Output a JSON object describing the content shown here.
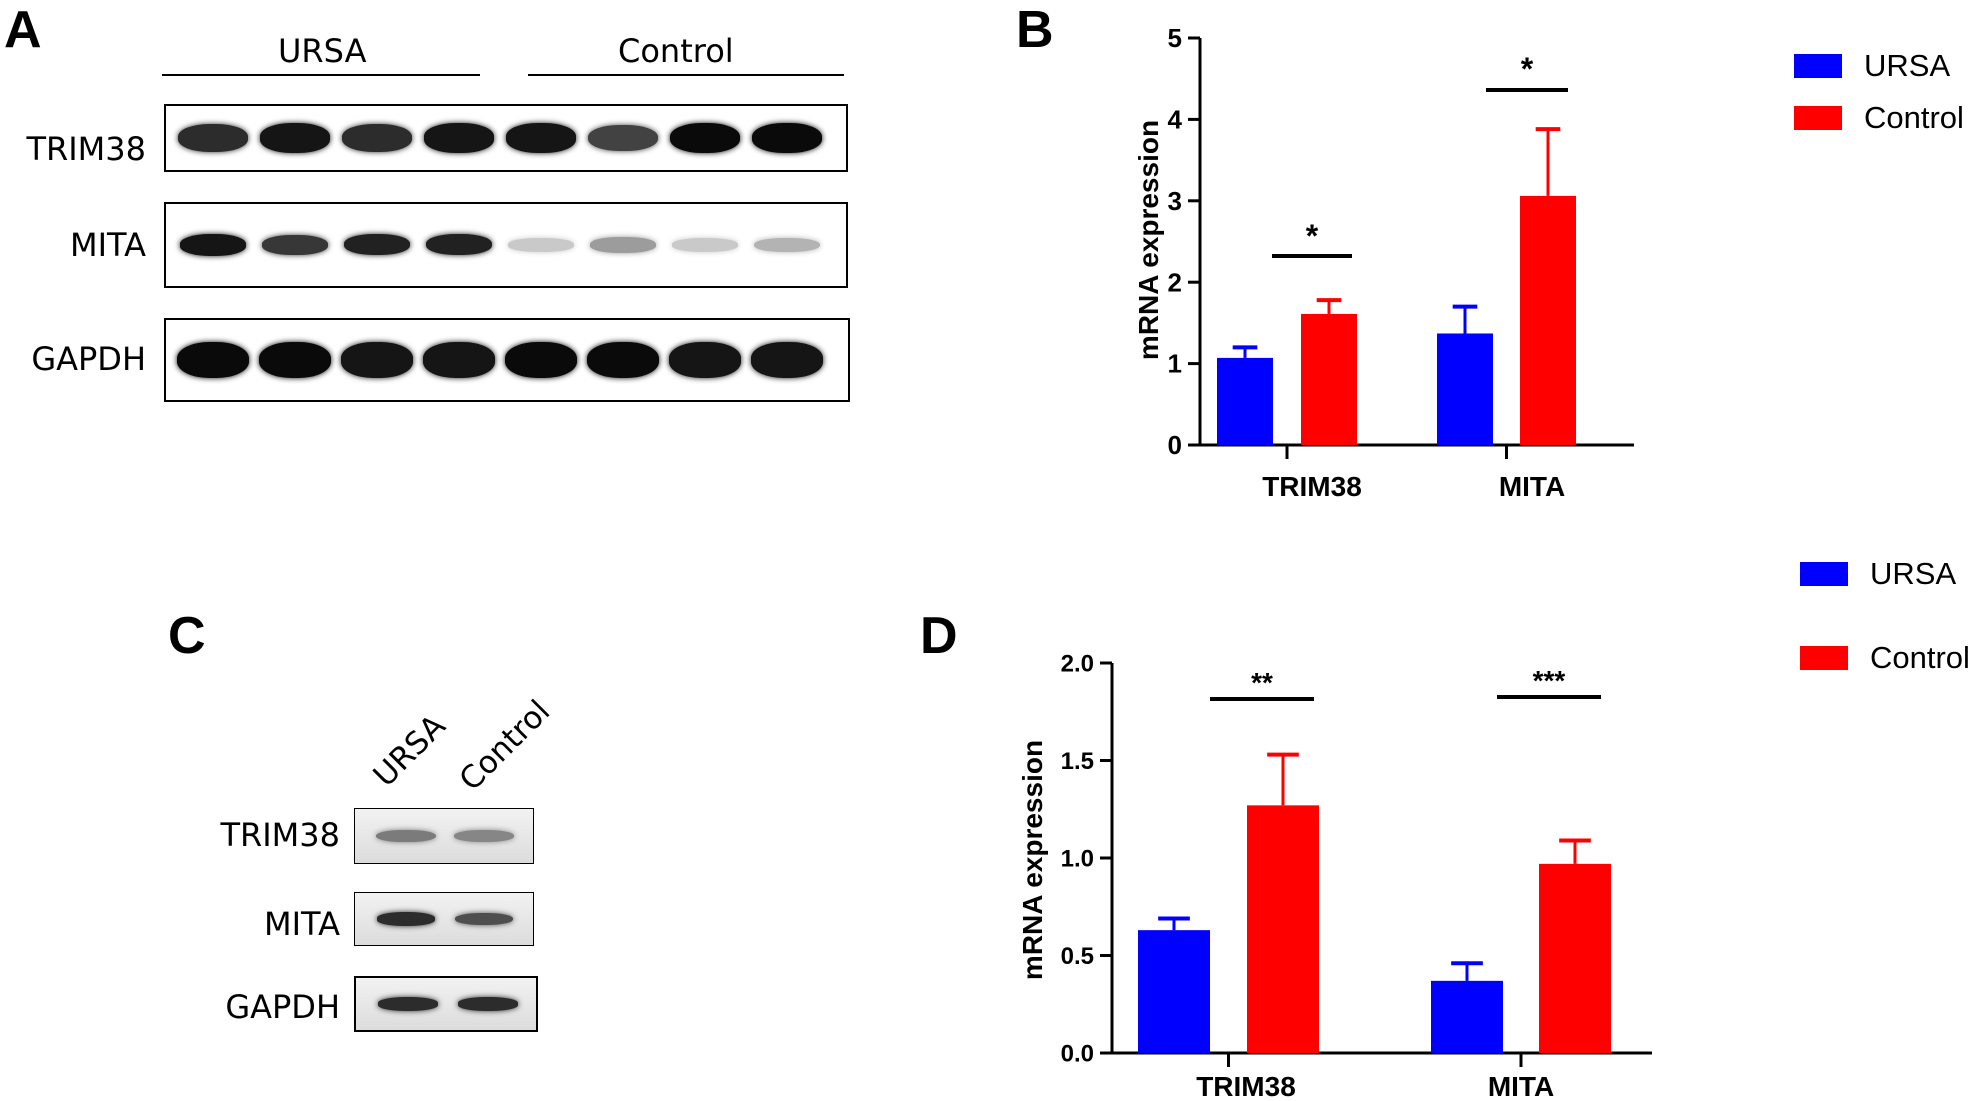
{
  "panels": {
    "A": {
      "letter": "A",
      "groups": [
        "URSA",
        "Control"
      ],
      "rows": [
        {
          "label": "TRIM38",
          "intensity": [
            0.85,
            0.95,
            0.85,
            0.95,
            0.95,
            0.75,
            1.0,
            1.0
          ]
        },
        {
          "label": "MITA",
          "intensity": [
            0.95,
            0.8,
            0.9,
            0.9,
            0.15,
            0.35,
            0.15,
            0.25
          ]
        },
        {
          "label": "GAPDH",
          "intensity": [
            1.0,
            1.0,
            0.95,
            0.95,
            1.0,
            1.0,
            0.95,
            0.95
          ]
        }
      ]
    },
    "B": {
      "letter": "B"
    },
    "C": {
      "letter": "C",
      "lanes": [
        "URSA",
        "Control"
      ],
      "rows": [
        {
          "label": "TRIM38",
          "intensity": [
            0.5,
            0.45
          ]
        },
        {
          "label": "MITA",
          "intensity": [
            0.85,
            0.7
          ]
        },
        {
          "label": "GAPDH",
          "intensity": [
            0.85,
            0.85
          ]
        }
      ]
    },
    "D": {
      "letter": "D"
    }
  },
  "chart_data": [
    {
      "type": "bar",
      "panel": "B",
      "categories": [
        "TRIM38",
        "MITA"
      ],
      "series": [
        {
          "name": "URSA",
          "color": "#0000ff",
          "values": [
            1.07,
            1.37
          ],
          "errors": [
            0.13,
            0.33
          ]
        },
        {
          "name": "Control",
          "color": "#ff0000",
          "values": [
            1.61,
            3.06
          ],
          "errors": [
            0.17,
            0.82
          ]
        }
      ],
      "significance": [
        "*",
        "*"
      ],
      "ylabel": "mRNA expression",
      "yticks": [
        "0",
        "1",
        "2",
        "3",
        "4",
        "5"
      ],
      "ylim": [
        0,
        5
      ],
      "legend": "right"
    },
    {
      "type": "bar",
      "panel": "D",
      "categories": [
        "TRIM38",
        "MITA"
      ],
      "series": [
        {
          "name": "URSA",
          "color": "#0000ff",
          "values": [
            0.63,
            0.37
          ],
          "errors": [
            0.06,
            0.09
          ]
        },
        {
          "name": "Control",
          "color": "#ff0000",
          "values": [
            1.27,
            0.97
          ],
          "errors": [
            0.26,
            0.12
          ]
        }
      ],
      "significance": [
        "**",
        "***"
      ],
      "ylabel": "mRNA expression",
      "yticks": [
        "0.0",
        "0.5",
        "1.0",
        "1.5",
        "2.0"
      ],
      "ylim": [
        0,
        2
      ],
      "legend": "right"
    }
  ]
}
